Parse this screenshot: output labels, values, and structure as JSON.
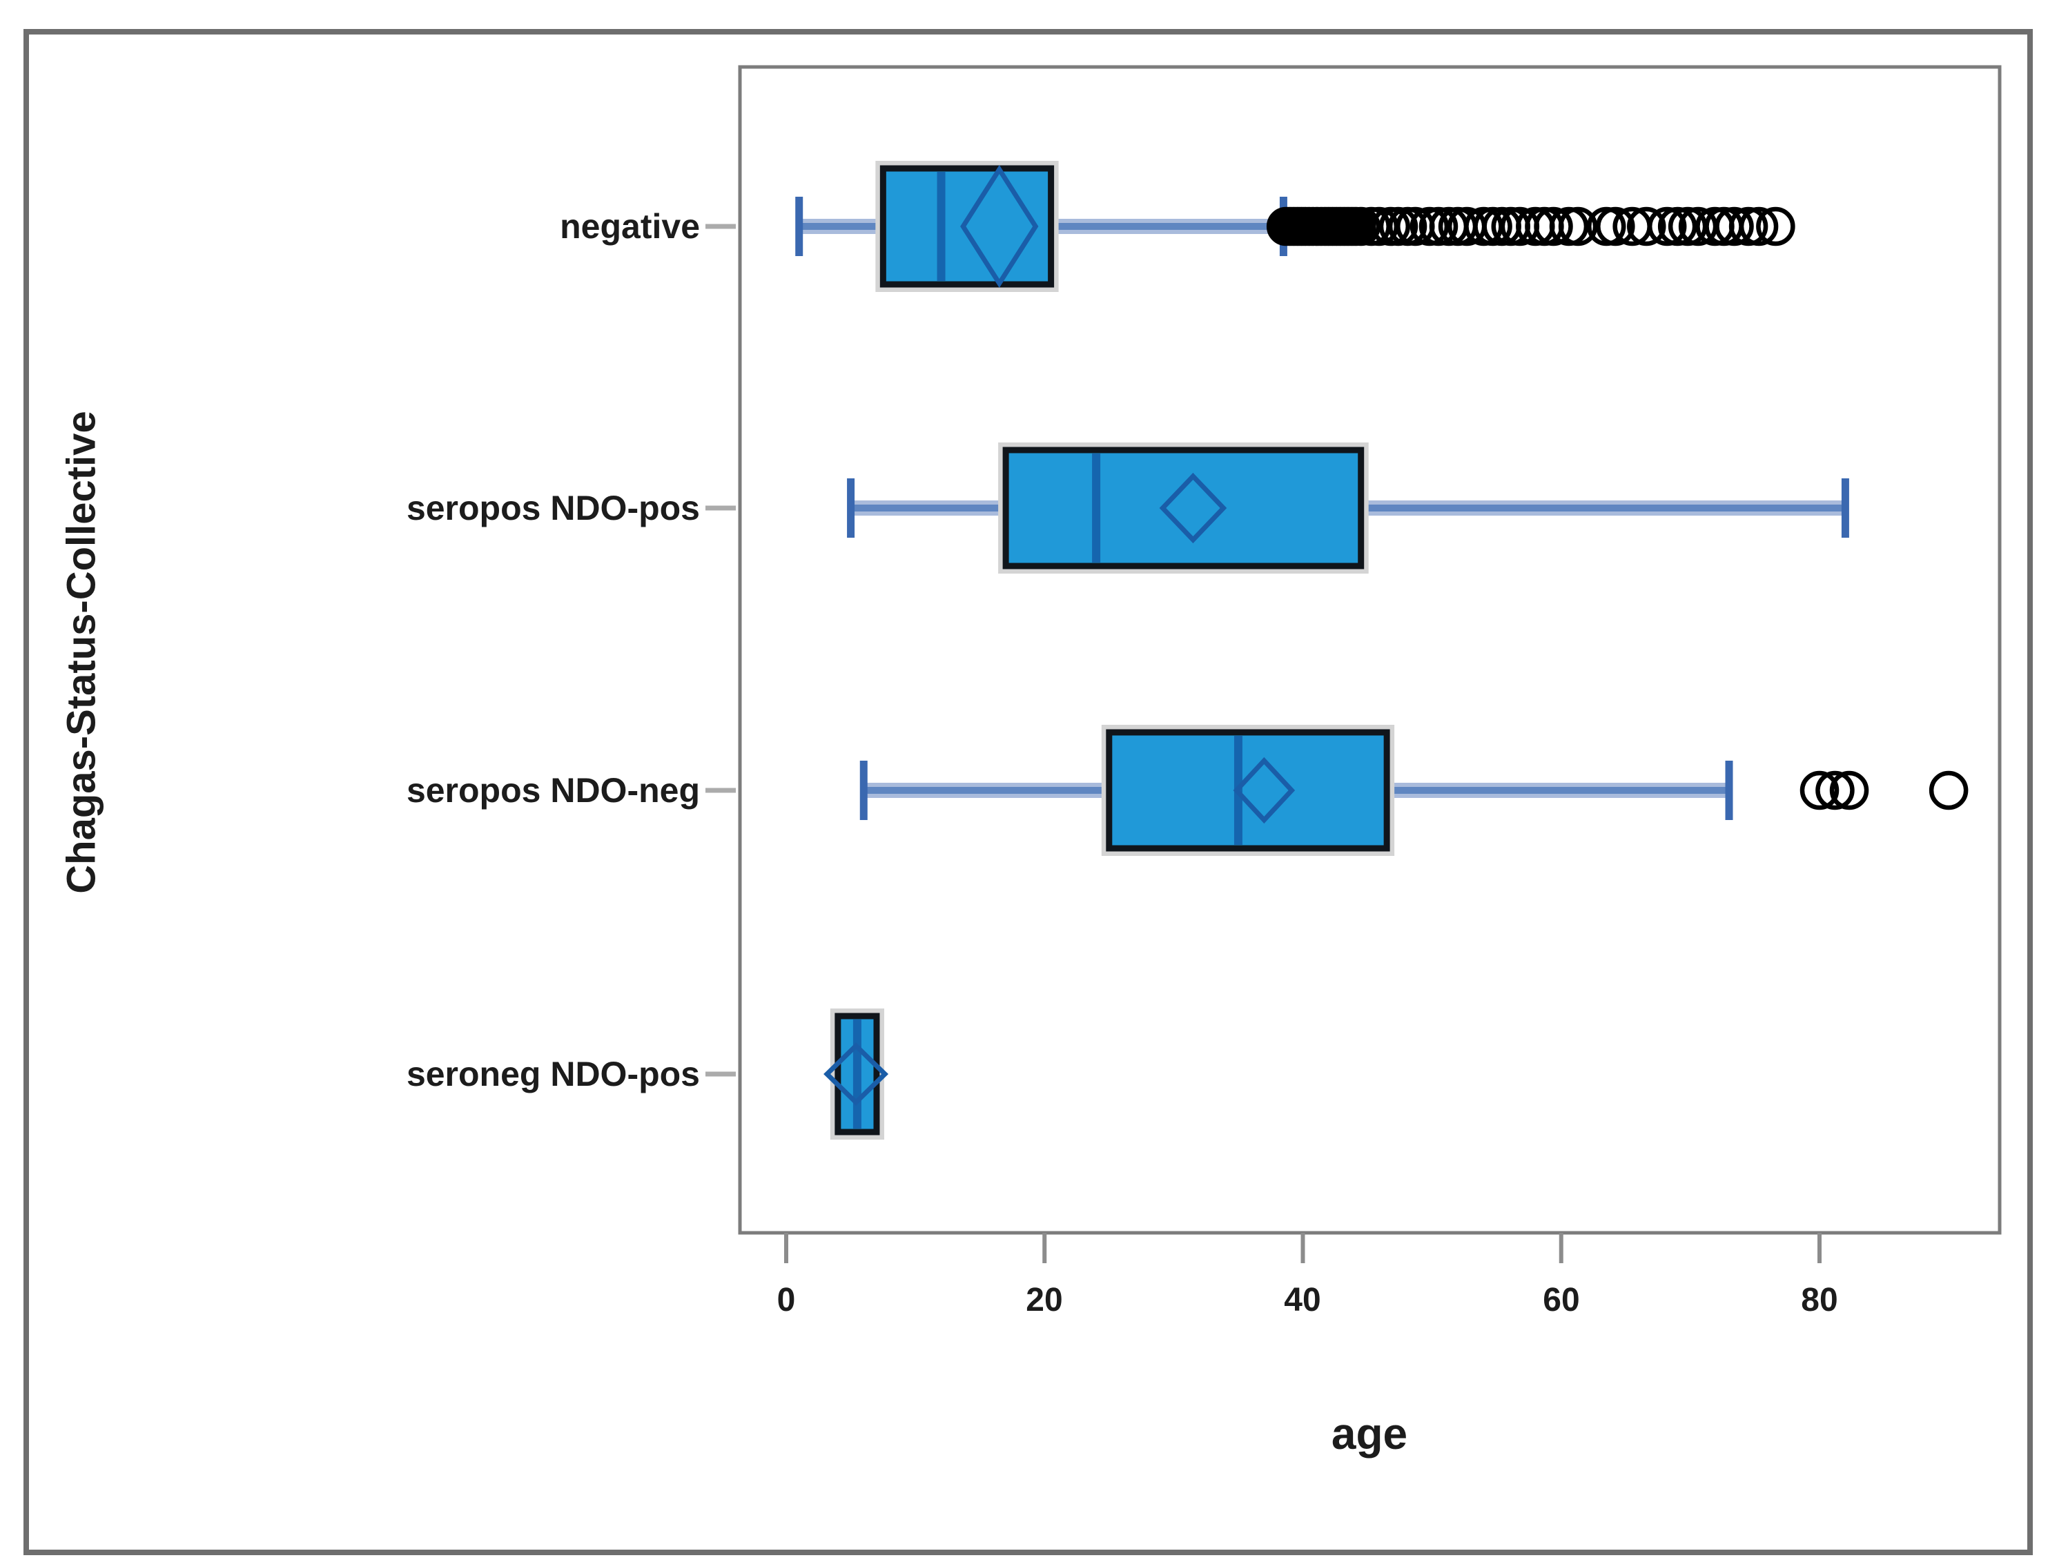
{
  "figure": {
    "background": "#ffffff",
    "outer_border_color": "#6e6e6e",
    "plot_frame_color": "#7c7c7c"
  },
  "chart_data": {
    "type": "box",
    "orientation": "horizontal",
    "title": "",
    "xlabel": "age",
    "ylabel": "Chagas-Status-Collective",
    "xlim": [
      -3.5,
      93
    ],
    "x_ticks": [
      0,
      20,
      40,
      60,
      80
    ],
    "grid": false,
    "legend": "none",
    "colors": {
      "box_fill": "#2099d8",
      "box_border": "#10151b",
      "box_shadow": "#d4d4d4",
      "median_line": "#1565ae",
      "whisker_halo": "#a9bbdc",
      "whisker_core": "#5f86c1",
      "whisker_cap": "#3a68b0",
      "mean_diamond": "#1a5da8",
      "outlier_stroke": "#000000",
      "tick_color": "#8c8c8c",
      "category_dash": "#ababab",
      "text": "#1c1c1c"
    },
    "categories": [
      {
        "label": "negative",
        "min": 1,
        "q1": 7.5,
        "median": 12,
        "mean": 16.5,
        "q3": 20.5,
        "max": 38.5,
        "outliers": [
          38.7,
          39.0,
          39.3,
          39.6,
          39.9,
          40.2,
          40.5,
          40.8,
          41.1,
          41.4,
          41.7,
          42.0,
          42.3,
          42.6,
          42.9,
          43.2,
          43.5,
          43.8,
          44.1,
          44.5,
          45.3,
          45.9,
          46.8,
          47.4,
          48.1,
          48.7,
          49.8,
          50.5,
          51.3,
          52.0,
          52.7,
          54.0,
          54.7,
          55.4,
          56.1,
          56.8,
          58.0,
          58.7,
          59.4,
          60.6,
          61.3,
          63.5,
          64.2,
          65.5,
          66.6,
          68.2,
          69.0,
          69.8,
          70.6,
          71.9,
          72.6,
          73.4,
          74.5,
          75.3,
          76.6
        ]
      },
      {
        "label": "seropos NDO-pos",
        "min": 5,
        "q1": 17,
        "median": 24,
        "mean": 31.5,
        "q3": 44.5,
        "max": 82,
        "outliers": []
      },
      {
        "label": "seropos NDO-neg",
        "min": 6,
        "q1": 25,
        "median": 35,
        "mean": 37,
        "q3": 46.5,
        "max": 73,
        "outliers": [
          80,
          81.2,
          82.3,
          90
        ]
      },
      {
        "label": "seroneg NDO-pos",
        "min": 4,
        "q1": 4,
        "median": 5.5,
        "mean": 5.4,
        "q3": 7,
        "max": 7,
        "outliers": []
      }
    ]
  }
}
